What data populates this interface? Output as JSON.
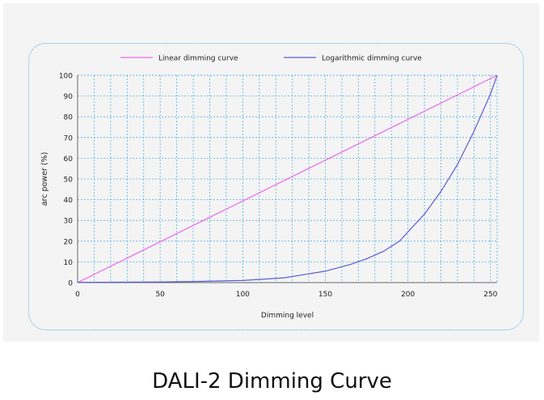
{
  "caption": "DALI-2 Dimming Curve",
  "chart_data": {
    "type": "line",
    "title": "",
    "xlabel": "Dimming level",
    "ylabel": "arc power  (%)",
    "xlim": [
      0,
      254
    ],
    "ylim": [
      0,
      100
    ],
    "x_ticks": [
      0,
      50,
      100,
      150,
      200,
      250
    ],
    "y_ticks": [
      0,
      10,
      20,
      30,
      40,
      50,
      60,
      70,
      80,
      90,
      100
    ],
    "grid": true,
    "legend_position": "top",
    "series": [
      {
        "name": "Linear dimming curve",
        "color": "#ee66ee",
        "x": [
          0,
          254
        ],
        "y": [
          0,
          100
        ]
      },
      {
        "name": "Logarithmic dimming curve",
        "color": "#5b5bd6",
        "x": [
          0,
          25,
          50,
          75,
          100,
          125,
          150,
          165,
          175,
          185,
          195,
          200,
          210,
          220,
          230,
          240,
          245,
          250,
          254
        ],
        "y": [
          0.1,
          0.2,
          0.3,
          0.6,
          1.0,
          2.3,
          5.5,
          8.7,
          11.5,
          15.0,
          20.0,
          24.5,
          33.0,
          44.0,
          57.0,
          73.0,
          82.0,
          91.0,
          100.0
        ]
      }
    ]
  }
}
